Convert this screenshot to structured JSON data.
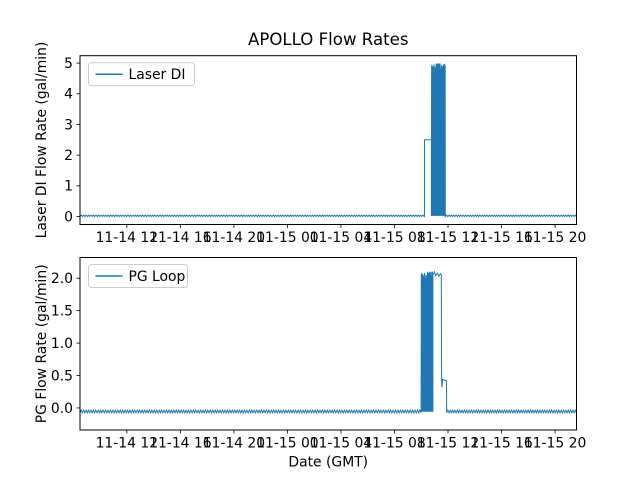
{
  "figure": {
    "title": "APOLLO Flow Rates",
    "xlabel": "Date (GMT)",
    "background_color": "#ffffff",
    "line_color": "#1f77b4"
  },
  "chart_data": [
    {
      "type": "line",
      "ylabel": "Laser DI Flow Rate (gal/min)",
      "legend": [
        "Laser DI"
      ],
      "legend_position": "upper left",
      "grid": false,
      "ylim": [
        -0.26,
        5.24
      ],
      "yticks": [
        0,
        1,
        2,
        3,
        4,
        5
      ],
      "ytick_labels": [
        "0",
        "1",
        "2",
        "3",
        "4",
        "5"
      ],
      "xlim": [
        0.5,
        37.6
      ],
      "xticks": [
        4,
        8,
        12,
        16,
        20,
        24,
        28,
        32,
        36
      ],
      "xtick_labels": [
        "11-14 12",
        "11-14 16",
        "11-14 20",
        "11-15 00",
        "11-15 04",
        "11-15 08",
        "11-15 12",
        "11-15 16",
        "11-15 20"
      ],
      "series": [
        {
          "name": "Laser DI",
          "color": "#1f77b4",
          "segments": [
            {
              "kind": "noise",
              "x0": 0.5,
              "x1": 26.24,
              "lo": 0.0,
              "hi": 0.045,
              "steps": 280
            },
            {
              "kind": "line",
              "pts": [
                [
                  26.24,
                  2.5
                ],
                [
                  26.76,
                  2.5
                ]
              ]
            },
            {
              "kind": "noise",
              "x0": 26.76,
              "x1": 27.8,
              "lo": 0.02,
              "hi": 4.85,
              "hi_j": 0.3,
              "steps": 110
            },
            {
              "kind": "noise",
              "x0": 27.8,
              "x1": 37.6,
              "lo": 0.0,
              "hi": 0.045,
              "steps": 110
            }
          ]
        }
      ]
    },
    {
      "type": "line",
      "ylabel": "PG Flow Rate (gal/min)",
      "legend": [
        "PG Loop"
      ],
      "legend_position": "upper left",
      "grid": false,
      "ylim": [
        -0.34,
        2.32
      ],
      "yticks": [
        0,
        0.5,
        1,
        1.5,
        2
      ],
      "ytick_labels": [
        "0.0",
        "0.5",
        "1.0",
        "1.5",
        "2.0"
      ],
      "xlim": [
        0.5,
        37.6
      ],
      "xticks": [
        4,
        8,
        12,
        16,
        20,
        24,
        28,
        32,
        36
      ],
      "xtick_labels": [
        "11-14 12",
        "11-14 16",
        "11-14 20",
        "11-15 00",
        "11-15 04",
        "11-15 08",
        "11-15 12",
        "11-15 16",
        "11-15 20"
      ],
      "series": [
        {
          "name": "PG Loop",
          "color": "#1f77b4",
          "segments": [
            {
              "kind": "noise",
              "x0": 0.5,
              "x1": 25.99,
              "lo": -0.075,
              "hi": -0.035,
              "steps": 280
            },
            {
              "kind": "noise",
              "x0": 25.99,
              "x1": 26.87,
              "lo": -0.06,
              "hi": 2.04,
              "hi_j": 0.13,
              "steps": 70
            },
            {
              "kind": "line",
              "pts": [
                [
                  26.87,
                  2.05
                ],
                [
                  26.98,
                  2.1
                ],
                [
                  27.08,
                  2.04
                ],
                [
                  27.2,
                  2.08
                ],
                [
                  27.32,
                  2.03
                ],
                [
                  27.42,
                  2.07
                ],
                [
                  27.5,
                  2.05
                ],
                [
                  27.52,
                  0.45
                ],
                [
                  27.56,
                  0.32
                ],
                [
                  27.6,
                  0.44
                ],
                [
                  27.88,
                  0.42
                ],
                [
                  27.9,
                  -0.06
                ]
              ]
            },
            {
              "kind": "noise",
              "x0": 27.9,
              "x1": 37.6,
              "lo": -0.075,
              "hi": -0.035,
              "steps": 110
            }
          ]
        }
      ]
    }
  ]
}
